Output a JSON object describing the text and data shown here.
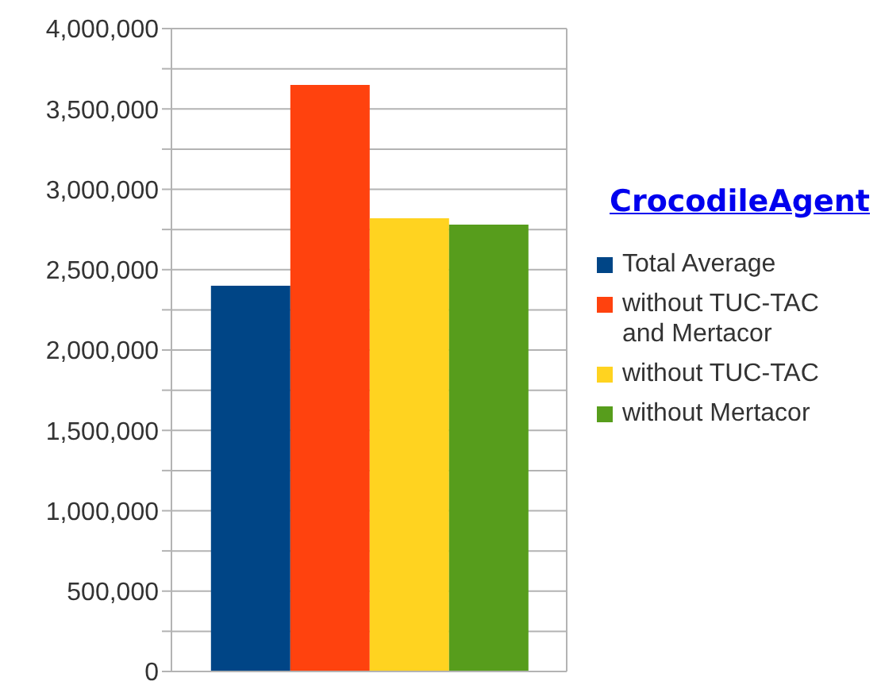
{
  "chart_data": {
    "type": "bar",
    "title": "CrocodileAgent",
    "categories": [
      null
    ],
    "series": [
      {
        "name": "Total Average",
        "color": "#004586",
        "values": [
          2400000
        ]
      },
      {
        "name": "without TUC-TAC and Mertacor",
        "color": "#ff420e",
        "values": [
          3650000
        ]
      },
      {
        "name": "without TUC-TAC",
        "color": "#ffd320",
        "values": [
          2820000
        ]
      },
      {
        "name": "without Mertacor",
        "color": "#579d1c",
        "values": [
          2780000
        ]
      }
    ],
    "ylim": [
      0,
      4000000
    ],
    "yticks": [
      0,
      {
        "value": 250000,
        "label": null
      },
      {
        "value": 500000,
        "label": "500,000"
      },
      {
        "value": 750000,
        "label": null
      },
      {
        "value": 1000000,
        "label": "1,000,000"
      },
      {
        "value": 1250000,
        "label": null
      },
      {
        "value": 1500000,
        "label": "1,500,000"
      },
      {
        "value": 1750000,
        "label": null
      },
      {
        "value": 2000000,
        "label": "2,000,000"
      },
      {
        "value": 2250000,
        "label": null
      },
      {
        "value": 2500000,
        "label": "2,500,000"
      },
      {
        "value": 2750000,
        "label": null
      },
      {
        "value": 3000000,
        "label": "3,000,000"
      },
      {
        "value": 3250000,
        "label": null
      },
      {
        "value": 3500000,
        "label": "3,500,000"
      },
      {
        "value": 3750000,
        "label": null
      },
      {
        "value": 4000000,
        "label": "4,000,000"
      }
    ],
    "grid": "y",
    "legend": "right"
  }
}
